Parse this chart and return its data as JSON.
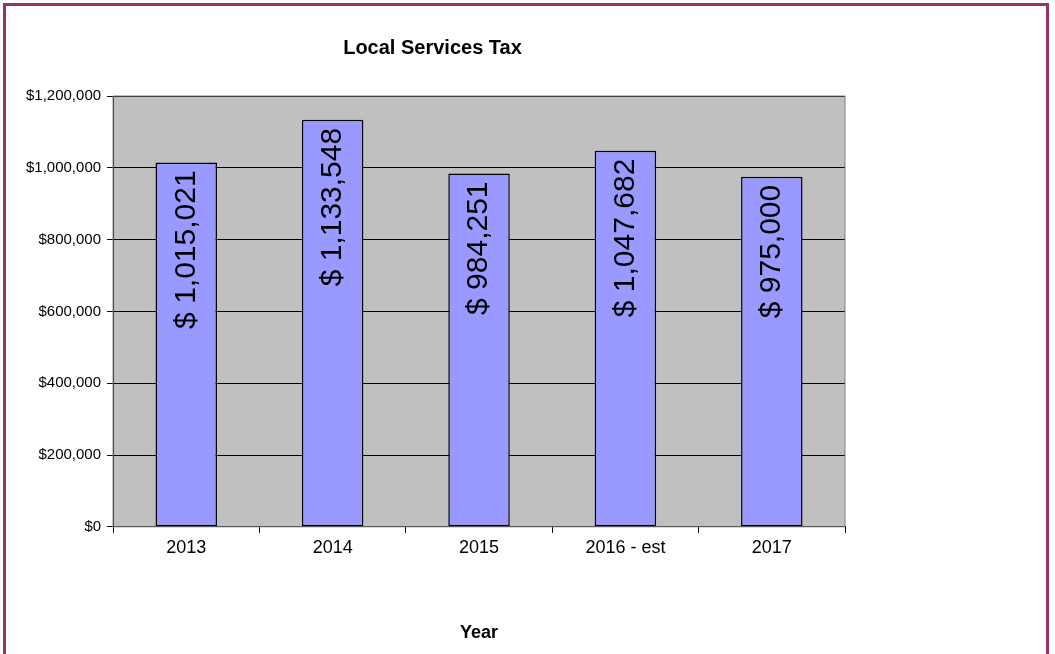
{
  "chart_data": {
    "type": "bar",
    "title": "Local Services Tax",
    "xlabel": "Year",
    "categories": [
      "2013",
      "2014",
      "2015",
      "2016 - est",
      "2017"
    ],
    "values": [
      1015021,
      1133548,
      984251,
      1047682,
      975000
    ],
    "value_labels": [
      "$ 1,015,021",
      "$ 1,133,548",
      "$ 984,251",
      "$ 1,047,682",
      "$ 975,000"
    ],
    "color": "#9999ff",
    "ylim": [
      0,
      1200000
    ],
    "yticks": [
      {
        "value": 0,
        "label": "$0"
      },
      {
        "value": 200000,
        "label": "$200,000"
      },
      {
        "value": 400000,
        "label": "$400,000"
      },
      {
        "value": 600000,
        "label": "$600,000"
      },
      {
        "value": 800000,
        "label": "$800,000"
      },
      {
        "value": 1000000,
        "label": "$1,000,000"
      },
      {
        "value": 1200000,
        "label": "$1,200,000"
      }
    ],
    "grid": "y",
    "legend": false
  }
}
